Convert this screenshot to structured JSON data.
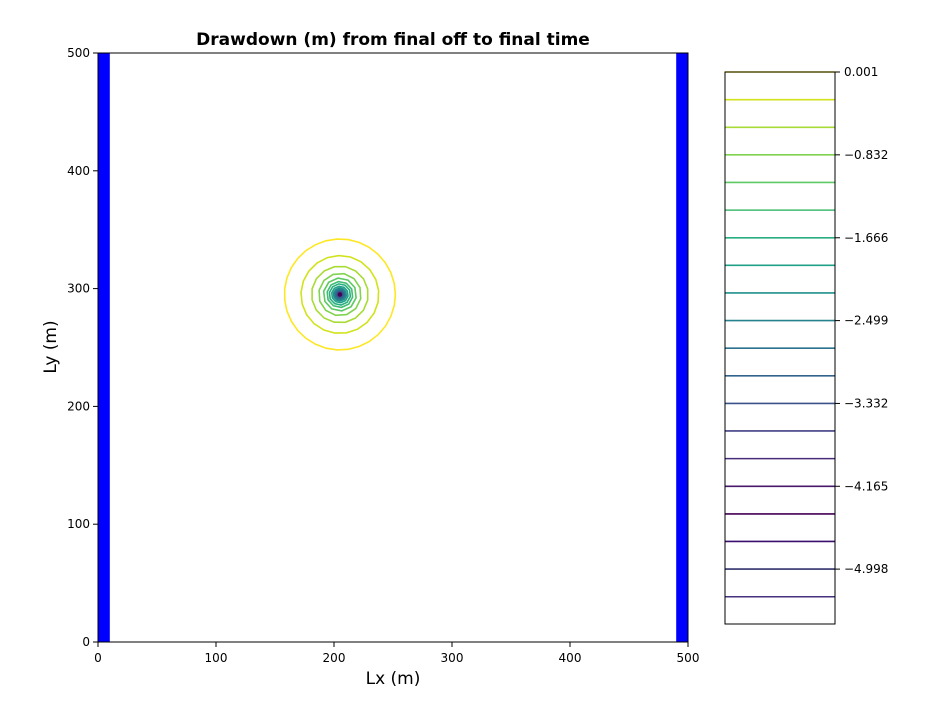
{
  "chart_data": {
    "type": "contour",
    "title": "Drawdown (m) from final off to final time",
    "xlabel": "Lx (m)",
    "ylabel": "Ly (m)",
    "xlim": [
      0,
      500
    ],
    "ylim": [
      0,
      500
    ],
    "x_ticks": [
      0,
      100,
      200,
      300,
      400,
      500
    ],
    "y_ticks": [
      0,
      100,
      200,
      300,
      400,
      500
    ],
    "grid": false,
    "boundary_strips": {
      "color": "#0000ff",
      "x_ranges": [
        [
          0,
          10
        ],
        [
          490,
          500
        ]
      ]
    },
    "contour_center": {
      "x": 205,
      "y": 295
    },
    "contour_radii": [
      47,
      33,
      24,
      18,
      14,
      11,
      9,
      7,
      5.5,
      4.5,
      3.6,
      2.8,
      2.1,
      1.5,
      1.0
    ],
    "colorbar": {
      "range": [
        -5.55,
        0.001
      ],
      "tick_values": [
        0.001,
        -0.832,
        -1.666,
        -2.499,
        -3.332,
        -4.165,
        -4.998
      ],
      "tick_labels": [
        "0.001",
        "−0.832",
        "−1.666",
        "−2.499",
        "−3.332",
        "−4.165",
        "−4.998"
      ],
      "level_values": [
        0.001,
        -0.277,
        -0.555,
        -0.832,
        -1.11,
        -1.388,
        -1.666,
        -1.943,
        -2.221,
        -2.499,
        -2.776,
        -3.054,
        -3.332,
        -3.609,
        -3.887,
        -4.165,
        -4.443,
        -4.72,
        -4.998,
        -5.276
      ],
      "level_colors": [
        "#fde725",
        "#d2e21b",
        "#a8db34",
        "#80d34e",
        "#5ec962",
        "#40bd72",
        "#28ae80",
        "#1fa187",
        "#21918c",
        "#26828e",
        "#2c728e",
        "#33638d",
        "#3b528b",
        "#424086",
        "#472d7b",
        "#48186a",
        "#440154",
        "#3b0f70",
        "#31326c",
        "#46327e"
      ]
    }
  }
}
